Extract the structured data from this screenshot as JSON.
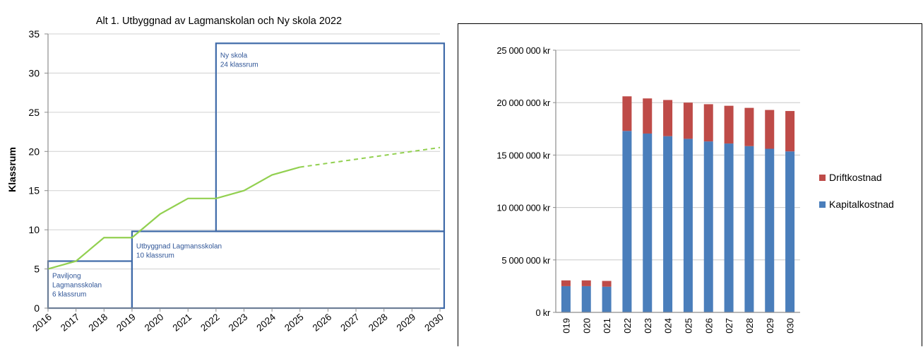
{
  "chart_data": [
    {
      "type": "line",
      "title": "Alt 1. Utbyggnad av Lagmanskolan och Ny skola 2022",
      "ylabel": "Klassrum",
      "xlabel": "",
      "ylim": [
        0,
        35
      ],
      "yticks": [
        "0",
        "5",
        "10",
        "15",
        "20",
        "25",
        "30",
        "35"
      ],
      "x": [
        "2016",
        "2017",
        "2018",
        "2019",
        "2020",
        "2021",
        "2022",
        "2023",
        "2024",
        "2025",
        "2026",
        "2027",
        "2028",
        "2029",
        "2030"
      ],
      "grid": true,
      "line_color": "#92d050",
      "series_solid": [
        [
          2016,
          5
        ],
        [
          2017,
          6
        ],
        [
          2018,
          9
        ],
        [
          2019,
          9
        ],
        [
          2020,
          12
        ],
        [
          2021,
          14
        ],
        [
          2022,
          14
        ],
        [
          2023,
          15
        ],
        [
          2024,
          17
        ],
        [
          2025,
          18
        ]
      ],
      "series_dashed": [
        [
          2025,
          18
        ],
        [
          2030,
          20.5
        ]
      ],
      "capacity_boxes": [
        {
          "label_lines": [
            "Paviljong",
            "Lagmansskolan",
            "6 klassrum"
          ],
          "x_from": 2016,
          "x_to": 2019,
          "y_from": 0,
          "y_to": 6
        },
        {
          "label_lines": [
            "Utbyggnad Lagmansskolan",
            "10 klassrum"
          ],
          "x_from": 2019,
          "x_to": 2030.15,
          "y_from": 0,
          "y_to": 9.8
        },
        {
          "label_lines": [
            "Ny skola",
            "24 klassrum"
          ],
          "x_from": 2022,
          "x_to": 2030.15,
          "y_from": 9.8,
          "y_to": 33.8
        }
      ],
      "box_color": "#3f6aa8"
    },
    {
      "type": "bar",
      "stacked": true,
      "title": "",
      "xlabel": "",
      "ylabel": "",
      "ylim": [
        0,
        25000000
      ],
      "yticks": [
        "0 kr",
        "5 000 000 kr",
        "10 000 000 kr",
        "15 000 000 kr",
        "20 000 000 kr",
        "25 000 000 kr"
      ],
      "categories": [
        "019",
        "020",
        "021",
        "022",
        "023",
        "024",
        "025",
        "026",
        "027",
        "028",
        "029",
        "030"
      ],
      "series": [
        {
          "name": "Kapitalkostnad",
          "color": "#4a7ebb",
          "values": [
            2500000,
            2500000,
            2450000,
            17300000,
            17050000,
            16800000,
            16550000,
            16300000,
            16100000,
            15850000,
            15600000,
            15350000
          ]
        },
        {
          "name": "Driftkostnad",
          "color": "#be4b48",
          "values": [
            550000,
            550000,
            550000,
            3300000,
            3350000,
            3450000,
            3450000,
            3550000,
            3600000,
            3650000,
            3700000,
            3850000
          ]
        }
      ],
      "legend_order": [
        "Driftkostnad",
        "Kapitalkostnad"
      ],
      "legend": "right",
      "grid": true
    }
  ]
}
